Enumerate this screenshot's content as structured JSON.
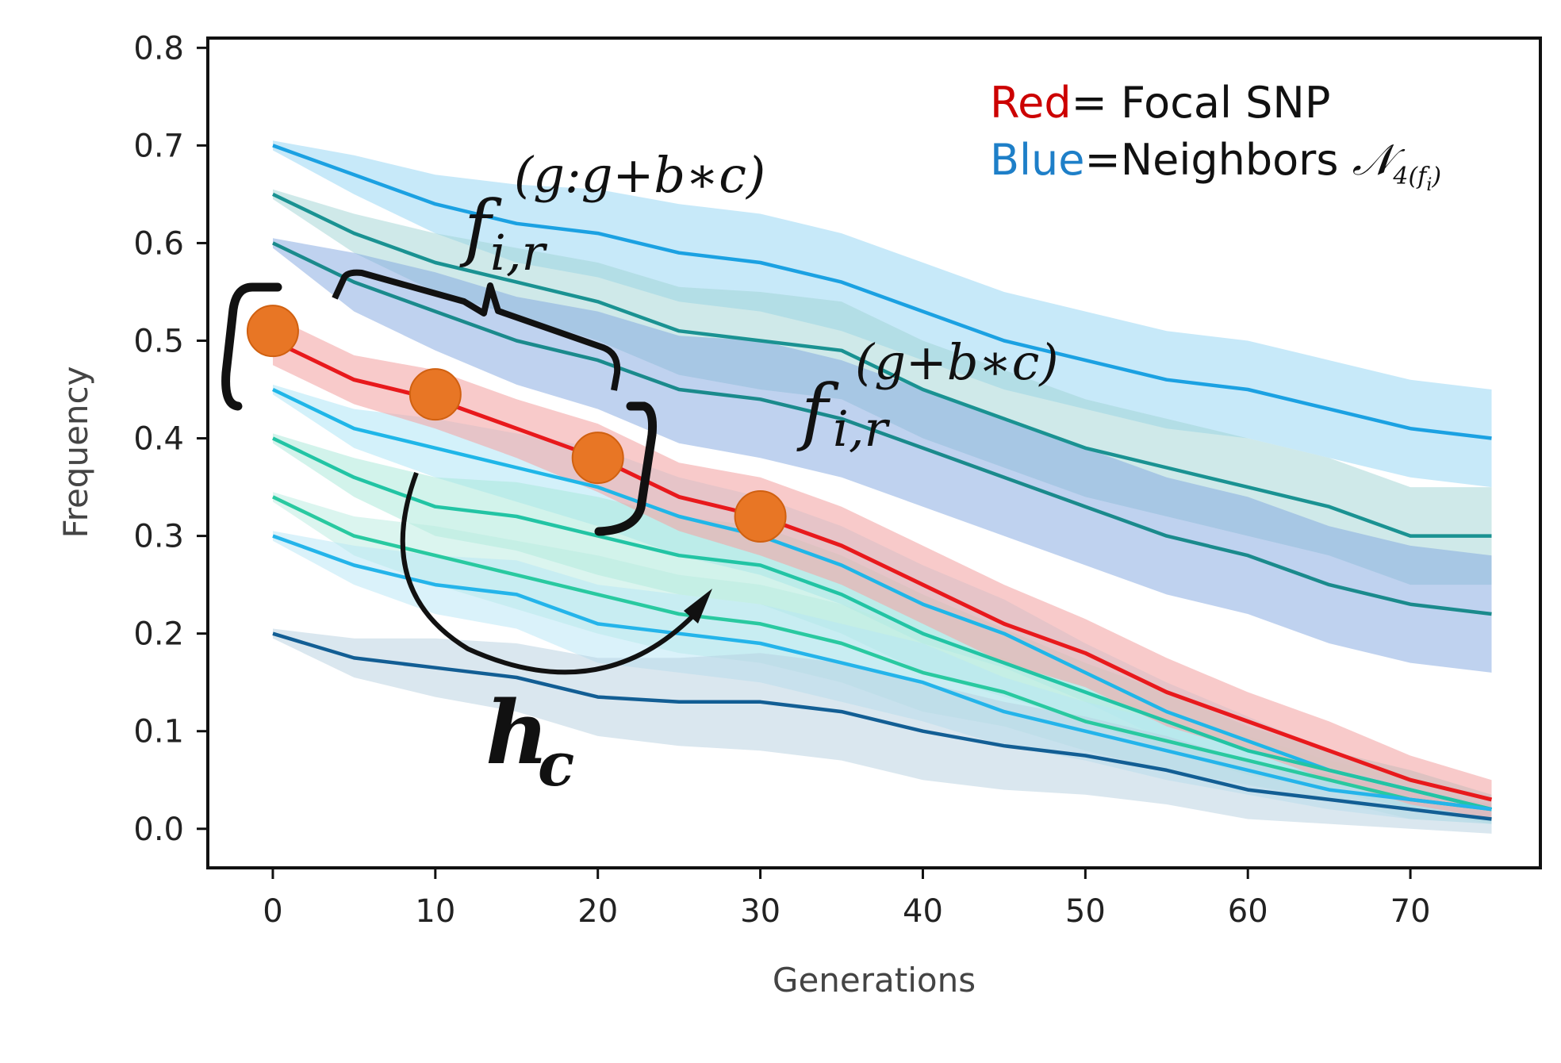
{
  "chart_data": {
    "type": "line",
    "title": "",
    "xlabel": "Generations",
    "ylabel": "Frequency",
    "xlim": [
      -4,
      78
    ],
    "ylim": [
      -0.04,
      0.81
    ],
    "xticks": [
      "0",
      "10",
      "20",
      "30",
      "40",
      "50",
      "60",
      "70"
    ],
    "yticks": [
      "0.0",
      "0.1",
      "0.2",
      "0.3",
      "0.4",
      "0.5",
      "0.6",
      "0.7",
      "0.8"
    ],
    "grid": false,
    "x": [
      0,
      5,
      10,
      15,
      20,
      25,
      30,
      35,
      40,
      45,
      50,
      55,
      60,
      65,
      70,
      75
    ],
    "series": [
      {
        "color": "#e8191c",
        "band_color": "#f4a6a6",
        "focal": true,
        "values": [
          0.5,
          0.46,
          0.44,
          0.41,
          0.38,
          0.34,
          0.32,
          0.29,
          0.25,
          0.21,
          0.18,
          0.14,
          0.11,
          0.08,
          0.05,
          0.03
        ],
        "band": [
          0.025,
          0.025,
          0.03,
          0.03,
          0.035,
          0.035,
          0.04,
          0.04,
          0.04,
          0.04,
          0.035,
          0.035,
          0.03,
          0.03,
          0.025,
          0.02
        ]
      },
      {
        "color": "#1ba1e2",
        "band_color": "#8fd3f4",
        "values": [
          0.7,
          0.67,
          0.64,
          0.62,
          0.61,
          0.59,
          0.58,
          0.56,
          0.53,
          0.5,
          0.48,
          0.46,
          0.45,
          0.43,
          0.41,
          0.4
        ],
        "band": [
          0.005,
          0.02,
          0.03,
          0.04,
          0.045,
          0.05,
          0.05,
          0.05,
          0.05,
          0.05,
          0.05,
          0.05,
          0.05,
          0.05,
          0.05,
          0.05
        ]
      },
      {
        "color": "#1a9292",
        "band_color": "#9fd4d4",
        "values": [
          0.65,
          0.61,
          0.58,
          0.56,
          0.54,
          0.51,
          0.5,
          0.49,
          0.45,
          0.42,
          0.39,
          0.37,
          0.35,
          0.33,
          0.3,
          0.3
        ],
        "band": [
          0.005,
          0.02,
          0.03,
          0.035,
          0.04,
          0.045,
          0.05,
          0.05,
          0.05,
          0.05,
          0.05,
          0.05,
          0.05,
          0.05,
          0.05,
          0.05
        ]
      },
      {
        "color": "#1a8a8c",
        "band_color": "#7fa6e0",
        "values": [
          0.6,
          0.56,
          0.53,
          0.5,
          0.48,
          0.45,
          0.44,
          0.42,
          0.39,
          0.36,
          0.33,
          0.3,
          0.28,
          0.25,
          0.23,
          0.22
        ],
        "band": [
          0.005,
          0.03,
          0.04,
          0.045,
          0.05,
          0.055,
          0.06,
          0.06,
          0.06,
          0.06,
          0.06,
          0.06,
          0.06,
          0.06,
          0.06,
          0.06
        ]
      },
      {
        "color": "#1fb6e8",
        "band_color": "#a8e3f5",
        "values": [
          0.45,
          0.41,
          0.39,
          0.37,
          0.35,
          0.32,
          0.3,
          0.27,
          0.23,
          0.2,
          0.16,
          0.12,
          0.09,
          0.06,
          0.04,
          0.02
        ],
        "band": [
          0.005,
          0.02,
          0.03,
          0.035,
          0.04,
          0.04,
          0.04,
          0.04,
          0.04,
          0.035,
          0.03,
          0.03,
          0.025,
          0.02,
          0.02,
          0.015
        ]
      },
      {
        "color": "#22c4a4",
        "band_color": "#a6e8d8",
        "values": [
          0.4,
          0.36,
          0.33,
          0.32,
          0.3,
          0.28,
          0.27,
          0.24,
          0.2,
          0.17,
          0.14,
          0.11,
          0.08,
          0.06,
          0.04,
          0.02
        ],
        "band": [
          0.005,
          0.02,
          0.03,
          0.035,
          0.04,
          0.04,
          0.04,
          0.04,
          0.04,
          0.035,
          0.03,
          0.03,
          0.025,
          0.02,
          0.02,
          0.015
        ]
      },
      {
        "color": "#29c9a0",
        "band_color": "#b8ecdf",
        "values": [
          0.34,
          0.3,
          0.28,
          0.26,
          0.24,
          0.22,
          0.21,
          0.19,
          0.16,
          0.14,
          0.11,
          0.09,
          0.07,
          0.05,
          0.03,
          0.02
        ],
        "band": [
          0.005,
          0.02,
          0.03,
          0.035,
          0.04,
          0.04,
          0.04,
          0.04,
          0.04,
          0.035,
          0.03,
          0.03,
          0.025,
          0.02,
          0.02,
          0.015
        ]
      },
      {
        "color": "#24b4ea",
        "band_color": "#b5e6f6",
        "values": [
          0.3,
          0.27,
          0.25,
          0.24,
          0.21,
          0.2,
          0.19,
          0.17,
          0.15,
          0.12,
          0.1,
          0.08,
          0.06,
          0.04,
          0.03,
          0.02
        ],
        "band": [
          0.005,
          0.02,
          0.03,
          0.035,
          0.04,
          0.04,
          0.04,
          0.04,
          0.04,
          0.035,
          0.03,
          0.03,
          0.025,
          0.02,
          0.02,
          0.015
        ]
      },
      {
        "color": "#125e94",
        "band_color": "#b5cfdf",
        "values": [
          0.2,
          0.175,
          0.165,
          0.155,
          0.135,
          0.13,
          0.13,
          0.12,
          0.1,
          0.085,
          0.075,
          0.06,
          0.04,
          0.03,
          0.02,
          0.01
        ],
        "band": [
          0.005,
          0.02,
          0.03,
          0.035,
          0.04,
          0.045,
          0.05,
          0.05,
          0.05,
          0.045,
          0.04,
          0.035,
          0.03,
          0.025,
          0.02,
          0.015
        ]
      }
    ],
    "highlight_points": [
      {
        "x": 0,
        "y": 0.51
      },
      {
        "x": 10,
        "y": 0.445
      },
      {
        "x": 20,
        "y": 0.38
      },
      {
        "x": 30,
        "y": 0.32
      }
    ],
    "highlight_color": "#e87625",
    "legend": {
      "placement": "top-right",
      "entries": [
        {
          "lead": "Red",
          "lead_color": "#cc0000",
          "rest": "= Focal SNP"
        },
        {
          "lead": "Blue",
          "lead_color": "#1e7fc8",
          "rest": "=Neighbors ",
          "math_main": "𝒩",
          "math_sub": "4(f",
          "math_sub2": "i",
          "math_sub3": ")"
        }
      ]
    },
    "annotations": {
      "window_base": "f",
      "window_sub": "i,r",
      "window_sup": "(g:g+b∗c)",
      "target_base": "f",
      "target_sub": "i,r",
      "target_sup": "(g+b∗c)",
      "hidden_base": "h",
      "hidden_sub": "c"
    }
  }
}
